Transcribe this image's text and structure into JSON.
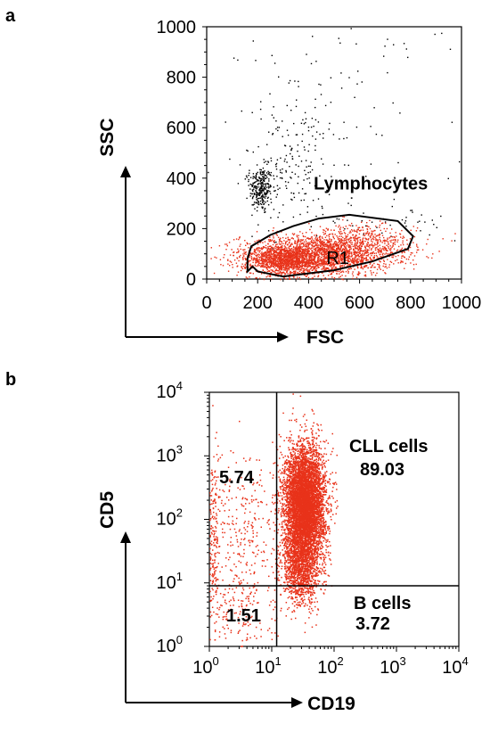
{
  "chart_data": [
    {
      "panel_label": "a",
      "type": "scatter",
      "xlabel": "FSC",
      "ylabel": "SSC",
      "xlim": [
        0,
        1000
      ],
      "ylim": [
        0,
        1000
      ],
      "xticks": [
        "0",
        "200",
        "400",
        "600",
        "800",
        "1000"
      ],
      "yticks": [
        "0",
        "200",
        "400",
        "600",
        "800",
        "1000"
      ],
      "gate": {
        "name": "R1",
        "polygon": [
          [
            160,
            30
          ],
          [
            180,
            50
          ],
          [
            200,
            30
          ],
          [
            300,
            10
          ],
          [
            500,
            35
          ],
          [
            650,
            70
          ],
          [
            790,
            120
          ],
          [
            810,
            170
          ],
          [
            750,
            230
          ],
          [
            560,
            255
          ],
          [
            440,
            240
          ],
          [
            340,
            210
          ],
          [
            250,
            175
          ],
          [
            175,
            130
          ],
          [
            160,
            80
          ]
        ]
      },
      "series": [
        {
          "color": "#000000",
          "clusters": [
            {
              "cx": 210,
              "cy": 360,
              "sx": 22,
              "sy": 45,
              "n": 260
            },
            {
              "cx": 330,
              "cy": 450,
              "sx": 80,
              "sy": 130,
              "n": 180
            },
            {
              "cx": 520,
              "cy": 680,
              "sx": 250,
              "sy": 250,
              "n": 120
            },
            {
              "cx": 700,
              "cy": 230,
              "sx": 130,
              "sy": 30,
              "n": 40
            }
          ]
        },
        {
          "color": "#e8321a",
          "clusters": [
            {
              "cx": 430,
              "cy": 95,
              "sx": 150,
              "sy": 40,
              "n": 2200
            },
            {
              "cx": 300,
              "cy": 75,
              "sx": 60,
              "sy": 28,
              "n": 900
            },
            {
              "cx": 600,
              "cy": 140,
              "sx": 110,
              "sy": 40,
              "n": 500
            }
          ]
        }
      ],
      "annotations": [
        {
          "text": "Lymphocytes",
          "x": 720,
          "y": 370
        }
      ]
    },
    {
      "panel_label": "b",
      "type": "scatter",
      "xlabel": "CD19",
      "ylabel": "CD5",
      "xscale": "log",
      "yscale": "log",
      "xlim": [
        1,
        10000
      ],
      "ylim": [
        1,
        10000
      ],
      "xticks": [
        {
          "base": "10",
          "exp": "0"
        },
        {
          "base": "10",
          "exp": "1"
        },
        {
          "base": "10",
          "exp": "2"
        },
        {
          "base": "10",
          "exp": "3"
        },
        {
          "base": "10",
          "exp": "4"
        }
      ],
      "yticks": [
        {
          "base": "10",
          "exp": "0"
        },
        {
          "base": "10",
          "exp": "1"
        },
        {
          "base": "10",
          "exp": "2"
        },
        {
          "base": "10",
          "exp": "3"
        },
        {
          "base": "10",
          "exp": "4"
        }
      ],
      "quadrant_x": 12,
      "quadrant_y": 9,
      "series": [
        {
          "color": "#e8321a",
          "clusters": [
            {
              "cx": 1.52,
              "cy": 2.25,
              "sx": 0.16,
              "sy": 0.45,
              "n": 6000
            },
            {
              "cx": 1.45,
              "cy": 1.25,
              "sx": 0.16,
              "sy": 0.3,
              "n": 1200
            },
            {
              "cx": 0.5,
              "cy": 1.9,
              "sx": 0.3,
              "sy": 0.6,
              "n": 300
            },
            {
              "cx": 0.5,
              "cy": 0.5,
              "sx": 0.3,
              "sy": 0.3,
              "n": 150
            },
            {
              "cx": 0.05,
              "cy": 1.6,
              "sx": 0.05,
              "sy": 0.8,
              "n": 200
            }
          ]
        }
      ],
      "quadrant_labels": [
        {
          "title": "CLL cells",
          "value": "89.03"
        },
        {
          "title": "",
          "value": "5.74"
        },
        {
          "title": "B cells",
          "value": "3.72"
        },
        {
          "title": "",
          "value": "1.51"
        }
      ]
    }
  ]
}
